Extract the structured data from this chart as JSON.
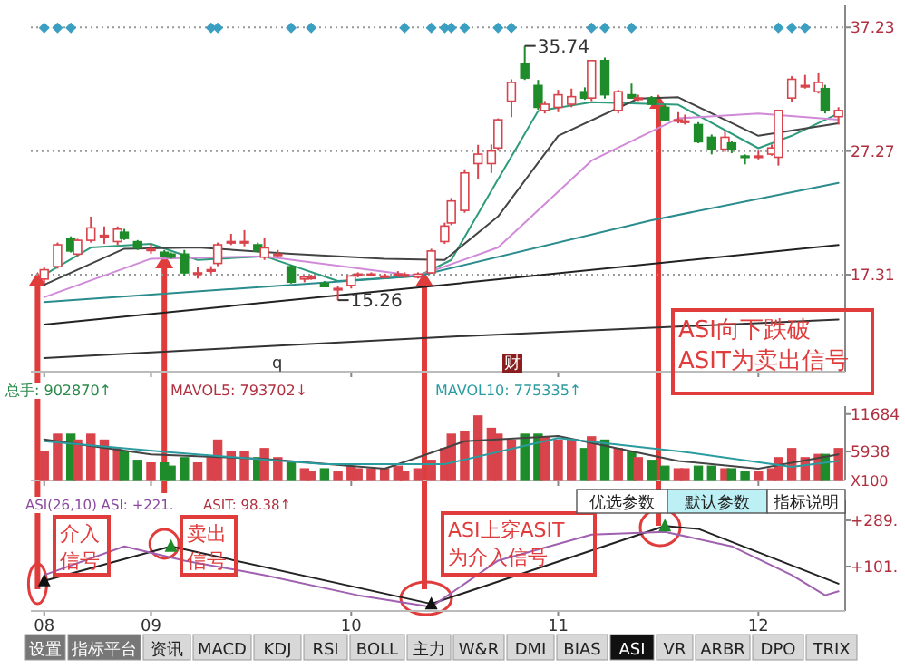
{
  "chart_data": [
    {
      "type": "candlestick",
      "x": [
        "--08-16",
        "--08-18",
        "--08-20",
        "--08-21",
        "--08-23",
        "--08-25",
        "--08-27",
        "--08-28",
        "--08-30",
        "--09-01",
        "--09-03",
        "--09-04",
        "--09-06",
        "--09-08",
        "--09-10",
        "--09-11",
        "--09-13",
        "--09-15",
        "--09-17",
        "--09-18",
        "--09-20",
        "--09-22",
        "--09-24",
        "--09-25",
        "--09-27",
        "--09-29",
        "--10-01",
        "--10-02",
        "--10-04",
        "--10-06",
        "--10-08",
        "--10-09",
        "--10-11",
        "--10-13",
        "--10-15",
        "--10-16",
        "--10-18",
        "--10-20",
        "--10-22",
        "--10-23",
        "--10-25",
        "--10-27",
        "--10-29",
        "--10-30",
        "--11-01",
        "--11-03",
        "--11-05",
        "--11-06",
        "--11-08",
        "--11-10",
        "--11-12",
        "--11-13",
        "--11-15",
        "--11-17",
        "--11-19",
        "--11-20",
        "--11-22",
        "--11-24",
        "--11-26",
        "--11-27",
        "--11-29",
        "--12-01",
        "--12-03",
        "--12-04",
        "--12-06",
        "--12-08",
        "--12-10",
        "--12-11",
        "--12-13"
      ],
      "ohlc": [
        [
          16.96,
          17.9,
          16.6,
          17.71
        ],
        [
          17.96,
          19.9,
          17.8,
          19.72
        ],
        [
          20.23,
          20.4,
          19.1,
          19.22
        ],
        [
          18.97,
          20.2,
          18.8,
          20.08
        ],
        [
          20.08,
          21.99,
          19.9,
          21.08
        ],
        [
          20.48,
          21.2,
          19.8,
          20.48
        ],
        [
          19.98,
          21.2,
          19.7,
          20.98
        ],
        [
          20.73,
          21.0,
          20.1,
          20.23
        ],
        [
          19.97,
          20.1,
          19.3,
          19.47
        ],
        [
          19.37,
          19.8,
          19.0,
          19.37
        ],
        [
          19.12,
          19.3,
          18.7,
          18.82
        ],
        [
          18.97,
          19.1,
          18.6,
          18.72
        ],
        [
          18.97,
          19.3,
          17.2,
          17.46
        ],
        [
          17.46,
          17.9,
          17.0,
          17.46
        ],
        [
          17.71,
          18.0,
          17.4,
          17.71
        ],
        [
          18.22,
          19.9,
          18.0,
          19.72
        ],
        [
          19.98,
          20.6,
          19.7,
          19.98
        ],
        [
          19.98,
          20.9,
          19.6,
          19.98
        ],
        [
          19.72,
          19.9,
          19.1,
          19.22
        ],
        [
          18.72,
          20.3,
          18.5,
          19.47
        ],
        [
          18.97,
          19.3,
          18.7,
          18.97
        ],
        [
          17.96,
          18.1,
          16.6,
          16.71
        ],
        [
          16.96,
          17.2,
          16.7,
          17.11
        ],
        [
          17.11,
          17.3,
          16.9,
          17.11
        ],
        [
          16.61,
          16.8,
          16.3,
          16.35
        ],
        [
          16.2,
          16.4,
          15.26,
          16.2
        ],
        [
          16.45,
          17.3,
          16.2,
          17.21
        ],
        [
          17.36,
          17.5,
          17.1,
          17.36
        ],
        [
          17.36,
          17.5,
          17.2,
          17.36
        ],
        [
          17.21,
          17.4,
          17.0,
          17.21
        ],
        [
          17.36,
          17.6,
          17.1,
          17.36
        ],
        [
          17.31,
          17.5,
          17.1,
          17.31
        ],
        [
          17.11,
          17.5,
          17.0,
          17.36
        ],
        [
          17.46,
          19.4,
          17.4,
          19.22
        ],
        [
          19.98,
          21.5,
          19.8,
          21.23
        ],
        [
          21.48,
          23.5,
          21.3,
          23.25
        ],
        [
          22.49,
          25.8,
          22.3,
          25.51
        ],
        [
          26.26,
          27.77,
          25.0,
          27.02
        ],
        [
          26.26,
          27.8,
          25.5,
          27.27
        ],
        [
          27.52,
          29.9,
          27.3,
          29.79
        ],
        [
          31.29,
          33.05,
          30.0,
          32.8
        ],
        [
          34.31,
          35.74,
          33.0,
          33.15
        ],
        [
          32.55,
          33.0,
          30.6,
          30.79
        ],
        [
          30.54,
          31.3,
          30.3,
          31.04
        ],
        [
          30.79,
          32.2,
          30.4,
          31.8
        ],
        [
          31.04,
          32.3,
          30.8,
          31.65
        ],
        [
          32.05,
          32.4,
          31.4,
          31.54
        ],
        [
          31.54,
          34.6,
          31.3,
          34.56
        ],
        [
          34.56,
          34.8,
          31.5,
          31.8
        ],
        [
          30.54,
          32.2,
          30.3,
          32.05
        ],
        [
          31.8,
          32.7,
          31.5,
          31.54
        ],
        [
          31.54,
          31.8,
          31.3,
          31.54
        ],
        [
          31.54,
          31.7,
          31.0,
          31.04
        ],
        [
          30.79,
          31.0,
          29.7,
          29.79
        ],
        [
          29.79,
          30.4,
          29.5,
          29.79
        ],
        [
          29.69,
          30.2,
          29.4,
          29.69
        ],
        [
          29.4,
          29.6,
          27.9,
          28.02
        ],
        [
          28.38,
          28.6,
          27.0,
          27.42
        ],
        [
          27.42,
          28.9,
          27.2,
          28.38
        ],
        [
          27.92,
          28.1,
          27.1,
          27.42
        ],
        [
          26.87,
          27.0,
          26.2,
          26.77
        ],
        [
          26.87,
          27.3,
          26.6,
          26.87
        ],
        [
          27.02,
          27.8,
          26.9,
          27.52
        ],
        [
          26.77,
          30.6,
          26.1,
          30.54
        ],
        [
          31.54,
          33.3,
          31.2,
          33.05
        ],
        [
          32.55,
          33.4,
          32.3,
          32.55
        ],
        [
          32.05,
          33.6,
          31.9,
          32.8
        ],
        [
          32.3,
          32.6,
          30.3,
          30.54
        ],
        [
          30.04,
          30.8,
          29.4,
          30.54
        ]
      ],
      "colors": [
        "#d9434b",
        "#d9434b",
        "#1e8c2a",
        "#d9434b",
        "#d9434b",
        "#d9434b",
        "#d9434b",
        "#1e8c2a",
        "#1e8c2a",
        "#d9434b",
        "#1e8c2a",
        "#1e8c2a",
        "#1e8c2a",
        "#d9434b",
        "#d9434b",
        "#d9434b",
        "#d9434b",
        "#d9434b",
        "#1e8c2a",
        "#d9434b",
        "#d9434b",
        "#1e8c2a",
        "#d9434b",
        "#d9434b",
        "#1e8c2a",
        "#d9434b",
        "#d9434b",
        "#d9434b",
        "#d9434b",
        "#d9434b",
        "#d9434b",
        "#d9434b",
        "#d9434b",
        "#d9434b",
        "#d9434b",
        "#d9434b",
        "#d9434b",
        "#d9434b",
        "#d9434b",
        "#d9434b",
        "#d9434b",
        "#1e8c2a",
        "#1e8c2a",
        "#d9434b",
        "#d9434b",
        "#d9434b",
        "#1e8c2a",
        "#d9434b",
        "#1e8c2a",
        "#d9434b",
        "#1e8c2a",
        "#d9434b",
        "#1e8c2a",
        "#1e8c2a",
        "#d9434b",
        "#d9434b",
        "#1e8c2a",
        "#1e8c2a",
        "#d9434b",
        "#1e8c2a",
        "#1e8c2a",
        "#d9434b",
        "#d9434b",
        "#d9434b",
        "#d9434b",
        "#d9434b",
        "#d9434b",
        "#1e8c2a",
        "#d9434b"
      ],
      "series": [
        {
          "type": "line",
          "color": "#2e9c7c",
          "x": [
            "--08-16",
            "--08-23",
            "--09-01",
            "--09-08",
            "--09-18",
            "--09-29",
            "--10-11",
            "--10-16",
            "--10-23",
            "--10-29",
            "--11-06",
            "--11-19",
            "--12-01",
            "--12-06",
            "--12-13"
          ],
          "values": [
            17.3,
            19.5,
            19.8,
            18.5,
            18.8,
            16.8,
            17.2,
            18.5,
            25,
            30.5,
            31.2,
            31.0,
            27.5,
            28.5,
            30.3
          ]
        },
        {
          "type": "line",
          "color": "#444444",
          "x": [
            "--08-16",
            "--08-28",
            "--09-08",
            "--09-22",
            "--10-06",
            "--10-15",
            "--10-23",
            "--11-01",
            "--11-13",
            "--11-19",
            "--12-01",
            "--12-13"
          ],
          "values": [
            16.5,
            19.4,
            19.5,
            19.0,
            18.6,
            18.5,
            22,
            28.5,
            31.5,
            31.6,
            28.5,
            29.5
          ]
        },
        {
          "type": "line",
          "color": "#d08ad8",
          "x": [
            "--08-16",
            "--09-01",
            "--09-18",
            "--10-11",
            "--10-23",
            "--11-06",
            "--11-19",
            "--12-01",
            "--12-13"
          ],
          "values": [
            15.5,
            18.6,
            18.8,
            17.2,
            19.5,
            26.5,
            29.9,
            30.3,
            29.8
          ]
        },
        {
          "type": "line",
          "color": "#2a8c8c",
          "x": [
            "--08-16",
            "--10-11",
            "--11-15",
            "--12-13"
          ],
          "values": [
            15.1,
            17.2,
            21.7,
            24.7
          ]
        },
        {
          "type": "line",
          "color": "#222222",
          "x": [
            "--08-16",
            "--10-15",
            "--12-13"
          ],
          "values": [
            13.3,
            16.5,
            19.7
          ]
        },
        {
          "type": "line",
          "color": "#333333",
          "x": [
            "--08-16",
            "--10-15",
            "--12-13"
          ],
          "values": [
            10.6,
            12.3,
            13.7
          ]
        },
        {
          "type": "scatter",
          "color": "#3a9fc0",
          "marker": "diamond",
          "x": [
            "--08-16",
            "--08-18",
            "--08-20",
            "--09-10",
            "--09-11",
            "--09-22",
            "--09-25",
            "--10-09",
            "--10-13",
            "--10-15",
            "--10-16",
            "--10-18",
            "--10-23",
            "--10-25",
            "--11-06",
            "--11-08",
            "--11-12",
            "--12-04",
            "--12-06",
            "--12-08"
          ],
          "values": [
            37.2,
            37.2,
            37.2,
            37.2,
            37.2,
            37.2,
            37.2,
            37.2,
            37.2,
            37.2,
            37.2,
            37.2,
            37.2,
            37.2,
            37.2,
            37.2,
            37.2,
            37.2,
            37.2,
            37.2
          ]
        }
      ],
      "xlim": [
        "--08-14",
        "--12-14"
      ],
      "ylim": [
        9.5,
        39
      ],
      "yticks": [
        17.31,
        27.27,
        37.23
      ],
      "xticks": [
        {
          "value": "--08-16",
          "label": null
        },
        {
          "value": "--09-01",
          "label": null
        },
        {
          "value": "--10-01",
          "label": null
        },
        {
          "value": "--11-01",
          "label": null
        },
        {
          "value": "--12-01",
          "label": null
        }
      ],
      "grid": "y",
      "tick_labels": "y",
      "annotations": [
        {
          "text": "35.74",
          "x": "--10-27",
          "y": 35.74
        },
        {
          "text": "15.26",
          "x": "--09-29",
          "y": 15.26
        },
        "q",
        "财",
        "ASI向下跌破ASIT为卖出信号"
      ]
    },
    {
      "type": "bar",
      "x": [
        "--08-16",
        "--08-18",
        "--08-20",
        "--08-21",
        "--08-23",
        "--08-25",
        "--08-27",
        "--08-28",
        "--08-30",
        "--09-01",
        "--09-03",
        "--09-04",
        "--09-06",
        "--09-08",
        "--09-10",
        "--09-11",
        "--09-13",
        "--09-15",
        "--09-17",
        "--09-18",
        "--09-20",
        "--09-22",
        "--09-24",
        "--09-25",
        "--09-27",
        "--09-29",
        "--10-01",
        "--10-02",
        "--10-04",
        "--10-06",
        "--10-08",
        "--10-09",
        "--10-11",
        "--10-13",
        "--10-15",
        "--10-16",
        "--10-18",
        "--10-20",
        "--10-22",
        "--10-23",
        "--10-25",
        "--10-27",
        "--10-29",
        "--10-30",
        "--11-01",
        "--11-03",
        "--11-05",
        "--11-06",
        "--11-08",
        "--11-10",
        "--11-12",
        "--11-13",
        "--11-15",
        "--11-17",
        "--11-19",
        "--11-20",
        "--11-22",
        "--11-24",
        "--11-26",
        "--11-27",
        "--11-29",
        "--12-01",
        "--12-03",
        "--12-04",
        "--12-06",
        "--12-08",
        "--12-10",
        "--12-11",
        "--12-13"
      ],
      "values": [
        5900,
        8600,
        8600,
        7700,
        8600,
        7700,
        6400,
        5900,
        4600,
        4200,
        4200,
        3700,
        5000,
        4200,
        5000,
        7700,
        5900,
        5900,
        5000,
        6400,
        5000,
        4200,
        3300,
        2800,
        3300,
        2800,
        3700,
        3300,
        3300,
        3300,
        3700,
        2800,
        3300,
        4600,
        6400,
        8600,
        9000,
        11400,
        9500,
        8600,
        7700,
        8600,
        8600,
        8200,
        7700,
        7700,
        6400,
        8200,
        7700,
        6400,
        5900,
        5000,
        4600,
        3700,
        3300,
        3300,
        3700,
        3700,
        3300,
        3300,
        2800,
        2800,
        3300,
        5000,
        6400,
        5000,
        5500,
        5500,
        6400
      ],
      "colors": [
        "#d9434b",
        "#d9434b",
        "#1e8c2a",
        "#d9434b",
        "#d9434b",
        "#d9434b",
        "#d9434b",
        "#1e8c2a",
        "#1e8c2a",
        "#d9434b",
        "#1e8c2a",
        "#1e8c2a",
        "#1e8c2a",
        "#d9434b",
        "#d9434b",
        "#d9434b",
        "#d9434b",
        "#d9434b",
        "#1e8c2a",
        "#d9434b",
        "#d9434b",
        "#1e8c2a",
        "#d9434b",
        "#d9434b",
        "#1e8c2a",
        "#d9434b",
        "#d9434b",
        "#d9434b",
        "#d9434b",
        "#d9434b",
        "#d9434b",
        "#d9434b",
        "#d9434b",
        "#d9434b",
        "#d9434b",
        "#d9434b",
        "#d9434b",
        "#d9434b",
        "#d9434b",
        "#d9434b",
        "#d9434b",
        "#1e8c2a",
        "#1e8c2a",
        "#d9434b",
        "#d9434b",
        "#d9434b",
        "#1e8c2a",
        "#d9434b",
        "#1e8c2a",
        "#d9434b",
        "#1e8c2a",
        "#d9434b",
        "#1e8c2a",
        "#1e8c2a",
        "#d9434b",
        "#d9434b",
        "#1e8c2a",
        "#1e8c2a",
        "#d9434b",
        "#1e8c2a",
        "#1e8c2a",
        "#d9434b",
        "#d9434b",
        "#d9434b",
        "#d9434b",
        "#d9434b",
        "#d9434b",
        "#1e8c2a",
        "#d9434b"
      ],
      "series": [
        {
          "type": "line",
          "color": "#444444",
          "x": [
            "--08-16",
            "--09-01",
            "--09-18",
            "--10-06",
            "--10-18",
            "--11-01",
            "--11-19",
            "--12-01",
            "--12-13"
          ],
          "values": [
            7800,
            5500,
            4800,
            3300,
            7500,
            8300,
            4500,
            3300,
            5500
          ]
        },
        {
          "type": "line",
          "color": "#2a9ca0",
          "x": [
            "--08-16",
            "--09-04",
            "--09-27",
            "--10-15",
            "--11-01",
            "--11-19",
            "--12-06",
            "--12-13"
          ],
          "values": [
            7500,
            5800,
            4000,
            4000,
            8000,
            6000,
            3600,
            4500
          ]
        }
      ],
      "xlim": [
        "--08-14",
        "--12-14"
      ],
      "ylim": [
        1500,
        12900
      ],
      "yticks": [
        5938,
        11684
      ],
      "xticks": [
        {
          "value": "--08-16",
          "label": null
        },
        {
          "value": "--09-01",
          "label": null
        },
        {
          "value": "--10-01",
          "label": null
        },
        {
          "value": "--11-01",
          "label": null
        },
        {
          "value": "--12-01",
          "label": null
        }
      ],
      "tick_labels": "y",
      "annotations": [
        "总手: 902870↑",
        "MAVOL5: 793702↓",
        "MAVOL10: 775335↑",
        "X100"
      ]
    },
    {
      "type": "line",
      "series": [
        {
          "type": "line",
          "color": "#222222",
          "x": [
            "--08-16",
            "--09-04",
            "--10-13",
            "--11-17",
            "--11-22",
            "--12-13"
          ],
          "values": [
            43,
            183,
            -51,
            266,
            254,
            31
          ]
        },
        {
          "type": "line",
          "color": "#a060b0",
          "x": [
            "--08-16",
            "--08-28",
            "--09-06",
            "--09-18",
            "--10-02",
            "--10-13",
            "--10-23",
            "--11-06",
            "--11-17",
            "--11-27",
            "--12-06",
            "--12-11",
            "--12-13"
          ],
          "values": [
            66,
            183,
            125,
            66,
            -16,
            -63,
            125,
            231,
            242,
            183,
            66,
            -16,
            0
          ]
        },
        {
          "type": "scatter",
          "marker": "triangle",
          "x": [
            "--08-16",
            "--09-04",
            "--10-13",
            "--11-17"
          ],
          "values": [
            43,
            183,
            -51,
            266
          ],
          "colors": [
            "#111111",
            "#1e8c2a",
            "#111111",
            "#1e8c2a"
          ]
        }
      ],
      "xlim": [
        "--08-14",
        "--12-14"
      ],
      "ylim": [
        -80,
        370
      ],
      "yticks": [
        {
          "value": 289,
          "label": "+289."
        },
        {
          "value": 101,
          "label": "+101."
        }
      ],
      "xticks": [
        {
          "value": "--08-16",
          "label": "08"
        },
        {
          "value": "--09-01",
          "label": "09"
        },
        {
          "value": "--10-01",
          "label": "10"
        },
        {
          "value": "--11-01",
          "label": "11"
        },
        {
          "value": "--12-01",
          "label": "12"
        }
      ],
      "annotations": [
        "ASI(26,10) ASI: +221.",
        "ASIT: 98.38↑",
        "介入信号",
        "卖出信号",
        "ASI上穿ASIT为介入信号",
        "优选参数",
        "默认参数",
        "指标说明",
        "设置",
        "指标平台",
        "资讯",
        "MACD",
        "KDJ",
        "RSI",
        "BOLL",
        "主力",
        "W&R",
        "DMI",
        "BIAS",
        "ASI",
        "VR",
        "ARBR",
        "DPO",
        "TRIX"
      ]
    }
  ]
}
